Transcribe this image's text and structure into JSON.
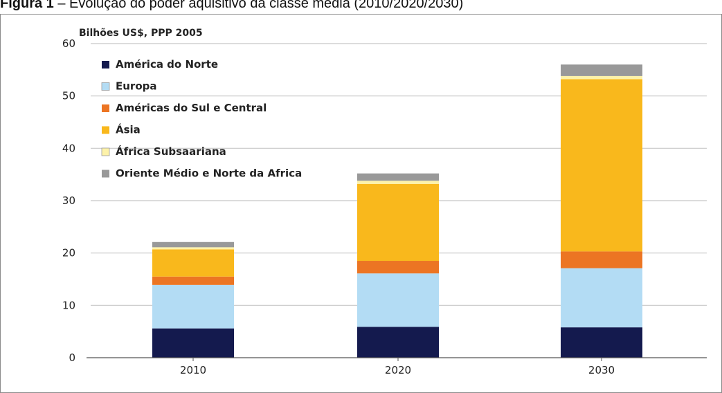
{
  "caption": {
    "label": "Figura 1",
    "text": "– Evolução do poder aquisitivo da classe média (2010/2020/2030)"
  },
  "colors": {
    "América do Norte": "#141a4e",
    "Europa": "#b3dcf4",
    "Américas do Sul e Central": "#ec7523",
    "Ásia": "#f9b81c",
    "África Subsaariana": "#fdf2a9",
    "Oriente Médio e Norte da África": "#72bb49",
    "grid": "#c8c8c8",
    "axis": "#555555"
  },
  "chart_data": {
    "type": "bar",
    "stacked": true,
    "title": "",
    "ylabel": "Bilhões US$, PPP 2005",
    "xlabel": "",
    "ylim": [
      0,
      60
    ],
    "yticks": [
      0,
      10,
      20,
      30,
      40,
      50,
      60
    ],
    "grid": true,
    "legend_position": "top-left",
    "categories": [
      "2010",
      "2020",
      "2030"
    ],
    "series": [
      {
        "name": "América do Norte",
        "values": [
          5.6,
          5.9,
          5.8
        ]
      },
      {
        "name": "Europa",
        "values": [
          8.3,
          10.2,
          11.3
        ]
      },
      {
        "name": "Américas do Sul e Central",
        "values": [
          1.6,
          2.4,
          3.2
        ]
      },
      {
        "name": "Ásia",
        "values": [
          5.2,
          14.7,
          32.9
        ]
      },
      {
        "name": "África Subsaariana",
        "values": [
          0.4,
          0.6,
          0.6
        ]
      },
      {
        "name": "Oriente Médio e Norte da Africa",
        "values": [
          1.0,
          1.4,
          2.2
        ]
      }
    ]
  }
}
